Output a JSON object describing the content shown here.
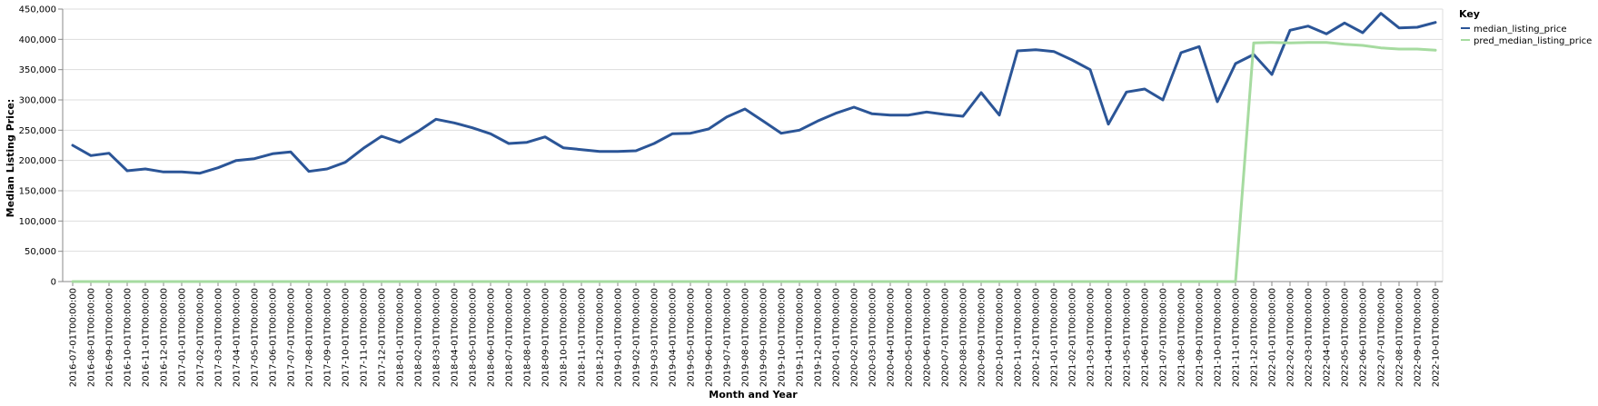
{
  "chart_data": {
    "type": "line",
    "xlabel": "Month and Year",
    "ylabel": "Median Listing Price:",
    "ylim": [
      0,
      450000
    ],
    "yticks": [
      "0",
      "50,000",
      "100,000",
      "150,000",
      "200,000",
      "250,000",
      "300,000",
      "350,000",
      "400,000",
      "450,000"
    ],
    "grid": true,
    "legend": {
      "title": "Key",
      "placement": "right"
    },
    "x": [
      "2016-07-01T00:00:00",
      "2016-08-01T00:00:00",
      "2016-09-01T00:00:00",
      "2016-10-01T00:00:00",
      "2016-11-01T00:00:00",
      "2016-12-01T00:00:00",
      "2017-01-01T00:00:00",
      "2017-02-01T00:00:00",
      "2017-03-01T00:00:00",
      "2017-04-01T00:00:00",
      "2017-05-01T00:00:00",
      "2017-06-01T00:00:00",
      "2017-07-01T00:00:00",
      "2017-08-01T00:00:00",
      "2017-09-01T00:00:00",
      "2017-10-01T00:00:00",
      "2017-11-01T00:00:00",
      "2017-12-01T00:00:00",
      "2018-01-01T00:00:00",
      "2018-02-01T00:00:00",
      "2018-03-01T00:00:00",
      "2018-04-01T00:00:00",
      "2018-05-01T00:00:00",
      "2018-06-01T00:00:00",
      "2018-07-01T00:00:00",
      "2018-08-01T00:00:00",
      "2018-09-01T00:00:00",
      "2018-10-01T00:00:00",
      "2018-11-01T00:00:00",
      "2018-12-01T00:00:00",
      "2019-01-01T00:00:00",
      "2019-02-01T00:00:00",
      "2019-03-01T00:00:00",
      "2019-04-01T00:00:00",
      "2019-05-01T00:00:00",
      "2019-06-01T00:00:00",
      "2019-07-01T00:00:00",
      "2019-08-01T00:00:00",
      "2019-09-01T00:00:00",
      "2019-10-01T00:00:00",
      "2019-11-01T00:00:00",
      "2019-12-01T00:00:00",
      "2020-01-01T00:00:00",
      "2020-02-01T00:00:00",
      "2020-03-01T00:00:00",
      "2020-04-01T00:00:00",
      "2020-05-01T00:00:00",
      "2020-06-01T00:00:00",
      "2020-07-01T00:00:00",
      "2020-08-01T00:00:00",
      "2020-09-01T00:00:00",
      "2020-10-01T00:00:00",
      "2020-11-01T00:00:00",
      "2020-12-01T00:00:00",
      "2021-01-01T00:00:00",
      "2021-02-01T00:00:00",
      "2021-03-01T00:00:00",
      "2021-04-01T00:00:00",
      "2021-05-01T00:00:00",
      "2021-06-01T00:00:00",
      "2021-07-01T00:00:00",
      "2021-08-01T00:00:00",
      "2021-09-01T00:00:00",
      "2021-10-01T00:00:00",
      "2021-11-01T00:00:00",
      "2021-12-01T00:00:00",
      "2022-01-01T00:00:00",
      "2022-02-01T00:00:00",
      "2022-03-01T00:00:00",
      "2022-04-01T00:00:00",
      "2022-05-01T00:00:00",
      "2022-06-01T00:00:00",
      "2022-07-01T00:00:00",
      "2022-08-01T00:00:00",
      "2022-09-01T00:00:00",
      "2022-10-01T00:00:00"
    ],
    "series": [
      {
        "name": "median_listing_price",
        "color": "#2b5597",
        "values": [
          225000,
          208000,
          212000,
          183000,
          186000,
          181000,
          181000,
          179000,
          188000,
          200000,
          203000,
          211000,
          214000,
          182000,
          186000,
          197000,
          220000,
          240000,
          230000,
          248000,
          268000,
          262000,
          254000,
          244000,
          228000,
          230000,
          239000,
          221000,
          218000,
          215000,
          215000,
          216000,
          228000,
          244000,
          245000,
          252000,
          272000,
          285000,
          265000,
          245000,
          250000,
          265000,
          278000,
          288000,
          277000,
          275000,
          275000,
          280000,
          276000,
          273000,
          312000,
          275000,
          381000,
          383000,
          380000,
          366000,
          350000,
          260000,
          313000,
          318000,
          300000,
          378000,
          388000,
          297000,
          360000,
          375000,
          342000,
          415000,
          422000,
          409000,
          427000,
          411000,
          443000,
          419000,
          420000,
          428000
        ]
      },
      {
        "name": "pred_median_listing_price",
        "color": "#a6dba0",
        "values": [
          0,
          0,
          0,
          0,
          0,
          0,
          0,
          0,
          0,
          0,
          0,
          0,
          0,
          0,
          0,
          0,
          0,
          0,
          0,
          0,
          0,
          0,
          0,
          0,
          0,
          0,
          0,
          0,
          0,
          0,
          0,
          0,
          0,
          0,
          0,
          0,
          0,
          0,
          0,
          0,
          0,
          0,
          0,
          0,
          0,
          0,
          0,
          0,
          0,
          0,
          0,
          0,
          0,
          0,
          0,
          0,
          0,
          0,
          0,
          0,
          0,
          0,
          0,
          0,
          0,
          394000,
          395000,
          394000,
          395000,
          395000,
          392000,
          390000,
          386000,
          384000,
          384000,
          382000
        ]
      }
    ]
  }
}
